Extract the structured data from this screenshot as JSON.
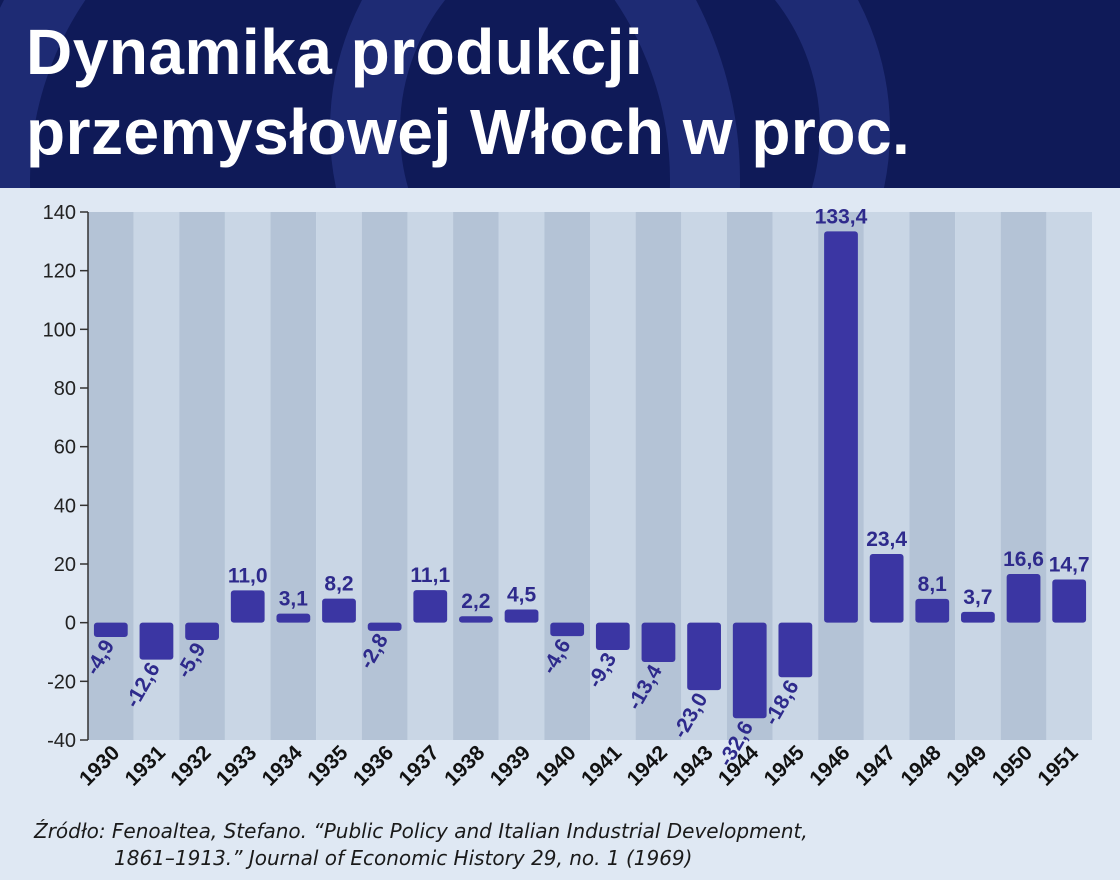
{
  "title": {
    "line1": "Dynamika produkcji",
    "line2": "przemysłowej Włoch w proc."
  },
  "source": {
    "line1": "Źródło: Fenoaltea, Stefano. “Public Policy and Italian Industrial Development,",
    "line2": "1861–1913.” Journal of Economic History  29, no. 1 (1969)"
  },
  "colors": {
    "header_bg": "#0f1a58",
    "bar": "#3b36a3",
    "label": "#2e2a8c",
    "stripe_dark": "#b4c3d6",
    "stripe_light": "#c9d6e5"
  },
  "chart_data": {
    "type": "bar",
    "title": "Dynamika produkcji przemysłowej Włoch w proc.",
    "xlabel": "",
    "ylabel": "",
    "ylim": [
      -40,
      140
    ],
    "yticks": [
      -40,
      -20,
      0,
      20,
      40,
      60,
      80,
      100,
      120,
      140
    ],
    "grid": false,
    "categories": [
      "1930",
      "1931",
      "1932",
      "1933",
      "1934",
      "1935",
      "1936",
      "1937",
      "1938",
      "1939",
      "1940",
      "1941",
      "1942",
      "1943",
      "1944",
      "1945",
      "1946",
      "1947",
      "1948",
      "1949",
      "1950",
      "1951"
    ],
    "values": [
      -4.9,
      -12.6,
      -5.9,
      11.0,
      3.1,
      8.2,
      -2.8,
      11.1,
      2.2,
      4.5,
      -4.6,
      -9.3,
      -13.4,
      -23.0,
      -32.6,
      -18.6,
      133.4,
      23.4,
      8.1,
      3.7,
      16.6,
      14.7
    ],
    "value_labels": [
      "-4,9",
      "-12,6",
      "-5,9",
      "11,0",
      "3,1",
      "8,2",
      "-2,8",
      "11,1",
      "2,2",
      "4,5",
      "-4,6",
      "-9,3",
      "-13,4",
      "-23,0",
      "-32,6",
      "-18,6",
      "133,4",
      "23,4",
      "8,1",
      "3,7",
      "16,6",
      "14,7"
    ]
  }
}
